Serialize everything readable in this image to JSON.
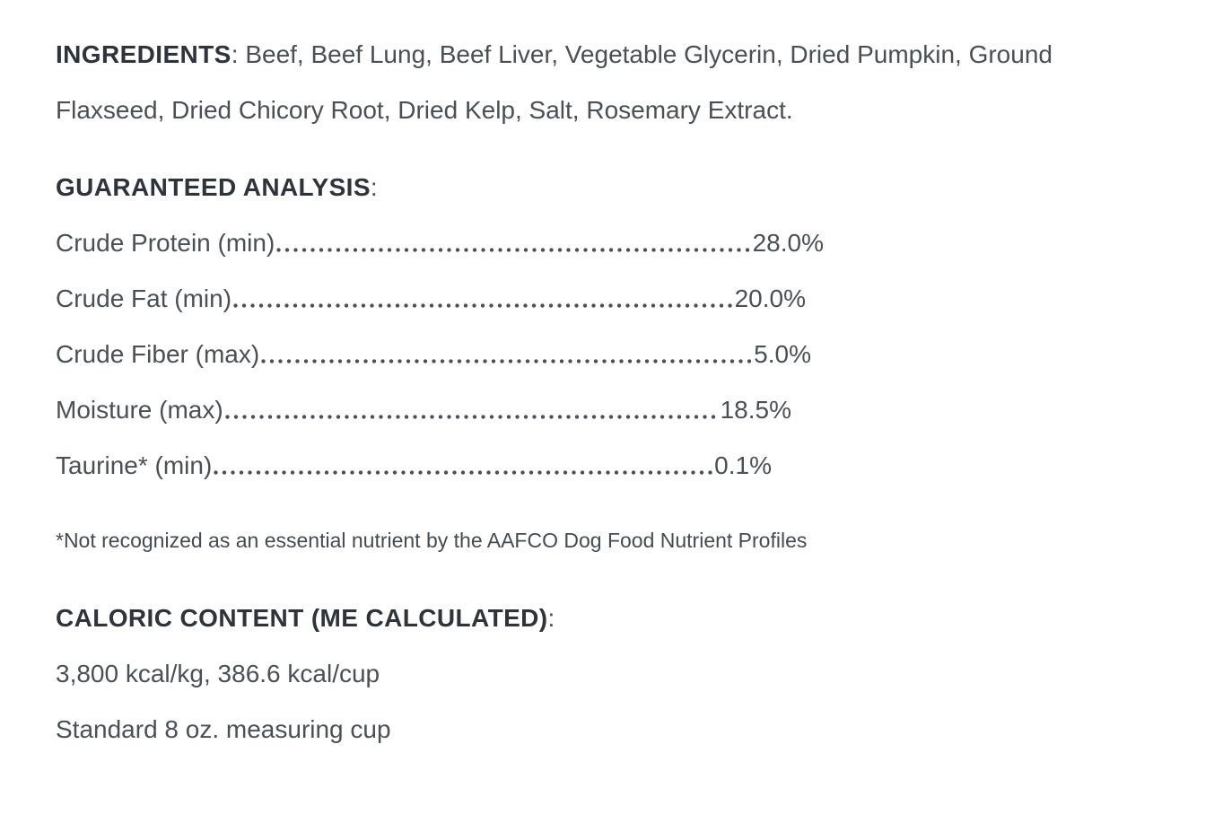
{
  "page": {
    "background_color": "#ffffff",
    "heading_text_color": "#2e333c",
    "body_text_color": "#4a5056"
  },
  "ingredients": {
    "label": "INGREDIENTS",
    "colon": ":",
    "line1": " Beef, Beef Lung, Beef Liver, Vegetable Glycerin, Dried Pumpkin, Ground",
    "line2": "Flaxseed, Dried Chicory Root, Dried Kelp, Salt, Rosemary Extract."
  },
  "guaranteed_analysis": {
    "label": "GUARANTEED ANALYSIS",
    "colon": ":",
    "rows": [
      {
        "label": "Crude Protein (min)",
        "value": "28.0%"
      },
      {
        "label": "Crude Fat (min)",
        "value": "20.0%"
      },
      {
        "label": "Crude Fiber (max)",
        "value": "5.0%"
      },
      {
        "label": "Moisture (max)",
        "value": "18.5%"
      },
      {
        "label": "Taurine* (min)",
        "value": "0.1%"
      }
    ],
    "footnote": "*Not recognized as an essential nutrient by the AAFCO Dog Food Nutrient Profiles"
  },
  "caloric_content": {
    "label": "CALORIC CONTENT (ME CALCULATED)",
    "colon": ":",
    "line_kcal": "3,800 kcal/kg, 386.6 kcal/cup",
    "line_cup": "Standard 8 oz. measuring cup"
  }
}
